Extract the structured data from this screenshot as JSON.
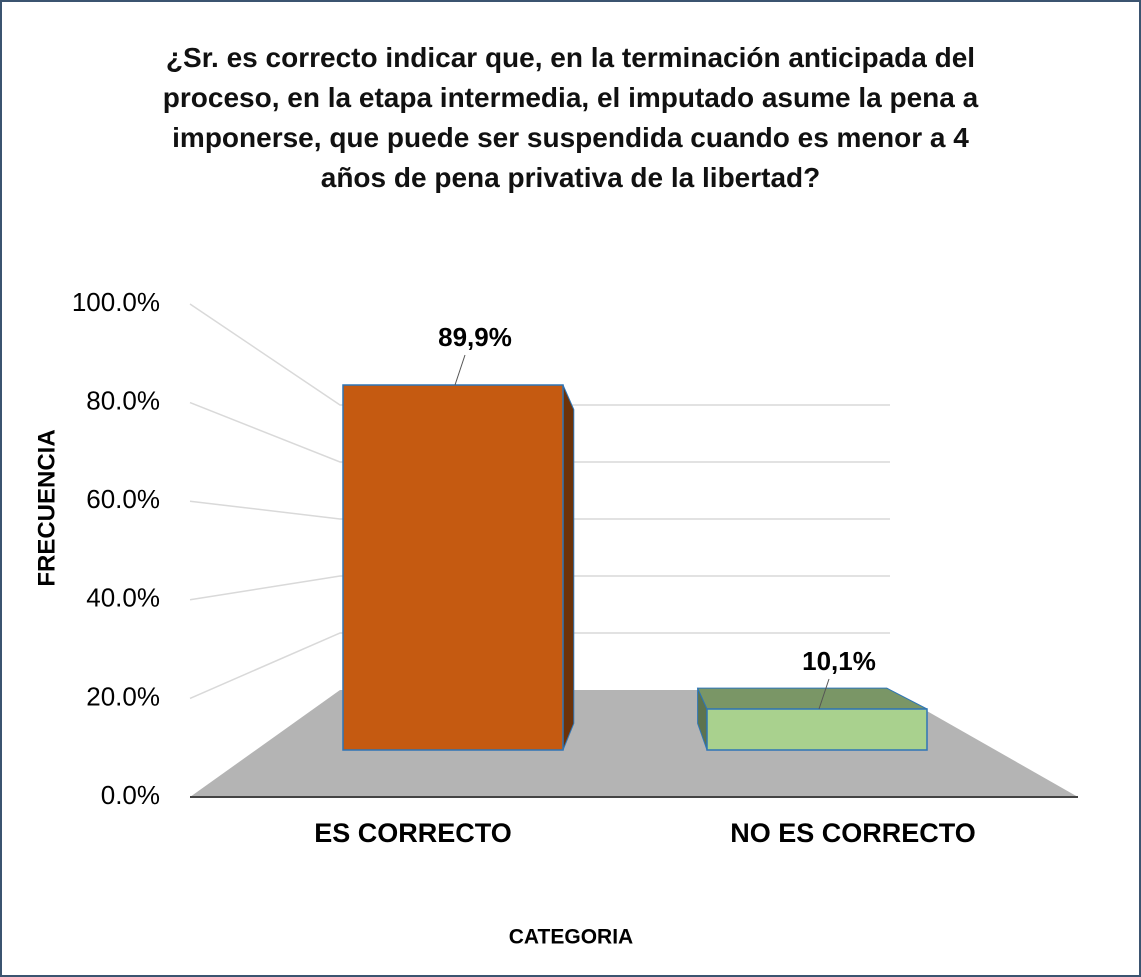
{
  "chart_data": {
    "type": "bar3d",
    "title": "¿Sr. es correcto indicar que, en la terminación anticipada del proceso, en la etapa intermedia, el imputado asume la pena a imponerse, que puede ser suspendida cuando es menor a 4 años de pena privativa de la libertad?",
    "x_label": "CATEGORIA",
    "y_label": "FRECUENCIA",
    "categories": [
      "ES CORRECTO",
      "NO ES CORRECTO"
    ],
    "values": [
      89.9,
      10.1
    ],
    "value_labels": [
      "89,9%",
      "10,1%"
    ],
    "colors": [
      "#c55a11",
      "#a9d18e"
    ],
    "ylim": [
      0,
      100
    ],
    "yticks": [
      {
        "value": 0,
        "label": "0.0%"
      },
      {
        "value": 20,
        "label": "20.0%"
      },
      {
        "value": 40,
        "label": "40.0%"
      },
      {
        "value": 60,
        "label": "60.0%"
      },
      {
        "value": 80,
        "label": "80.0%"
      },
      {
        "value": 100,
        "label": "100.0%"
      }
    ],
    "grid": true
  }
}
